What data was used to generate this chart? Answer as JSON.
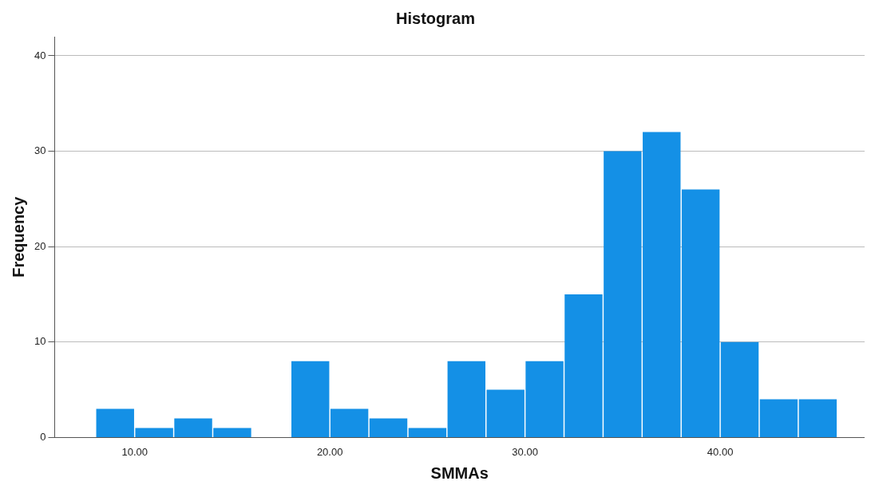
{
  "chart_data": {
    "type": "histogram",
    "title": "Histogram",
    "xlabel": "SMMAs",
    "ylabel": "Frequency",
    "bins": [
      8,
      10,
      12,
      14,
      16,
      18,
      20,
      22,
      24,
      26,
      28,
      30,
      32,
      34,
      36,
      38,
      40,
      42,
      44,
      46
    ],
    "values": [
      3,
      1,
      2,
      1,
      0,
      8,
      3,
      2,
      1,
      8,
      5,
      8,
      15,
      30,
      32,
      26,
      10,
      4,
      4
    ],
    "color": "#1490e6",
    "xlim": [
      5.9,
      47.4
    ],
    "xticks": [
      {
        "value": 10,
        "label": "10.00"
      },
      {
        "value": 20,
        "label": "20.00"
      },
      {
        "value": 30,
        "label": "30.00"
      },
      {
        "value": 40,
        "label": "40.00"
      }
    ],
    "ylim": [
      0,
      42
    ],
    "yticks": [
      0,
      10,
      20,
      30,
      40
    ],
    "grid": "y",
    "legend": false
  }
}
